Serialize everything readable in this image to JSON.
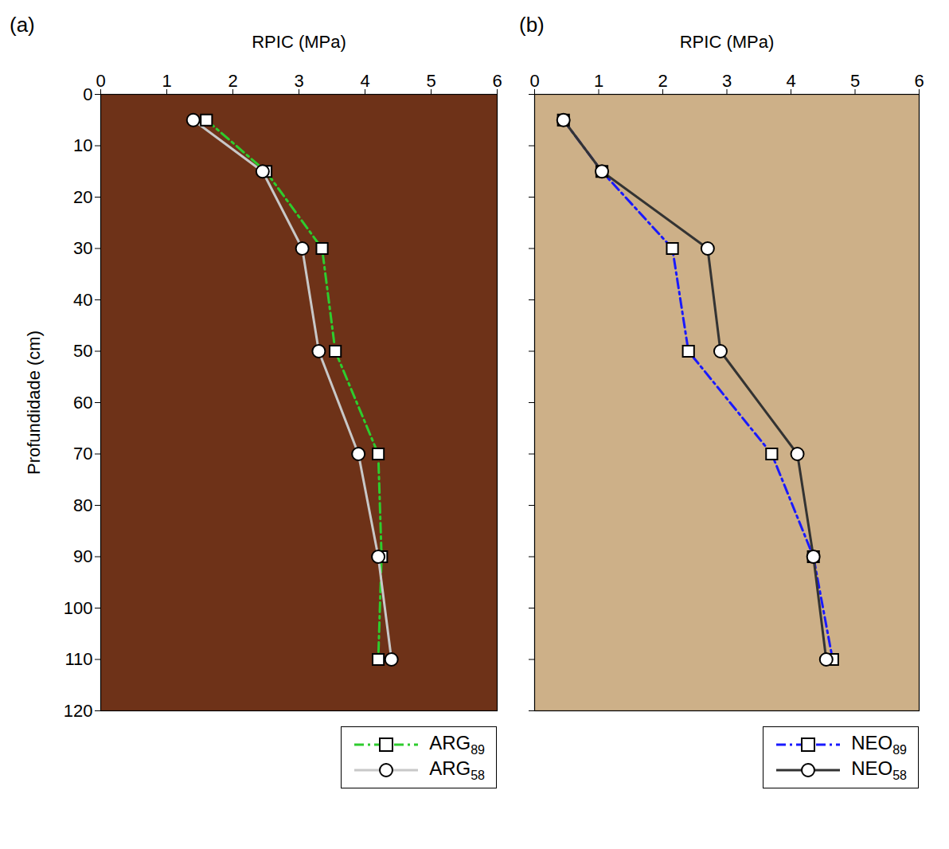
{
  "chart_data": [
    {
      "type": "line",
      "title": "(a)",
      "x_label": "RPIC (MPa)",
      "y_label": "Profundidade (cm)",
      "xlim": [
        0,
        6
      ],
      "xticks": [
        0,
        1,
        2,
        3,
        4,
        5,
        6
      ],
      "ylim": [
        0,
        120
      ],
      "yticks": [
        0,
        10,
        20,
        30,
        40,
        50,
        60,
        70,
        80,
        90,
        100,
        110,
        120
      ],
      "y": [
        5,
        15,
        30,
        50,
        70,
        90,
        110
      ],
      "legend": "bottom right",
      "series": [
        {
          "name": "ARG89",
          "color": "#2ecc2e",
          "marker": "square",
          "line_style": "dashdot",
          "values": [
            1.6,
            2.5,
            3.35,
            3.55,
            4.2,
            4.25,
            4.2
          ]
        },
        {
          "name": "ARG58",
          "color": "#c8c8c8",
          "marker": "circle",
          "line_style": "solid",
          "values": [
            1.4,
            2.45,
            3.05,
            3.3,
            3.9,
            4.2,
            4.4
          ]
        }
      ]
    },
    {
      "type": "line",
      "title": "(b)",
      "x_label": "RPIC (MPa)",
      "xlim": [
        0,
        6
      ],
      "xticks": [
        0,
        1,
        2,
        3,
        4,
        5,
        6
      ],
      "ylim": [
        0,
        120
      ],
      "yticks": [
        0,
        10,
        20,
        30,
        40,
        50,
        60,
        70,
        80,
        90,
        100,
        110,
        120
      ],
      "tick_labels": "x",
      "y": [
        5,
        15,
        30,
        50,
        70,
        90,
        110
      ],
      "legend": "bottom right",
      "series": [
        {
          "name": "NEO89",
          "color": "#1a1aff",
          "marker": "square",
          "line_style": "dashdot",
          "values": [
            0.45,
            1.05,
            2.15,
            2.4,
            3.7,
            4.35,
            4.65
          ]
        },
        {
          "name": "NEO58",
          "color": "#333333",
          "marker": "circle",
          "line_style": "solid",
          "values": [
            0.45,
            1.05,
            2.7,
            2.9,
            4.1,
            4.35,
            4.55
          ]
        }
      ]
    }
  ]
}
